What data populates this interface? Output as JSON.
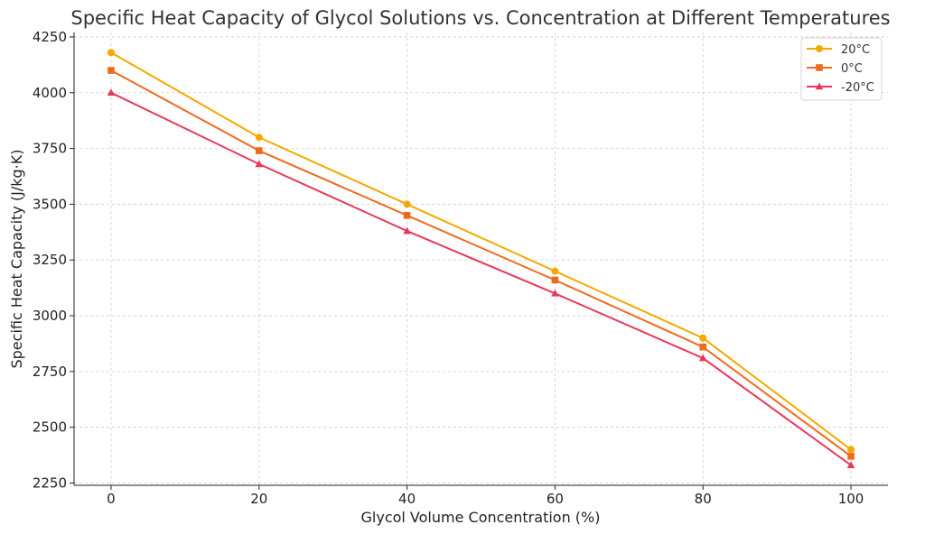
{
  "chart_data": {
    "type": "line",
    "title": "Specific Heat Capacity of Glycol Solutions vs. Concentration at Different Temperatures",
    "xlabel": "Glycol Volume Concentration (%)",
    "ylabel": "Specific Heat Capacity (J/kg·K)",
    "x": [
      0,
      20,
      40,
      60,
      80,
      100
    ],
    "xticks": [
      0,
      20,
      40,
      60,
      80,
      100
    ],
    "yticks": [
      2250,
      2500,
      2750,
      3000,
      3250,
      3500,
      3750,
      4000,
      4250
    ],
    "xlim": [
      -5,
      105
    ],
    "ylim": [
      2240,
      4270
    ],
    "grid": true,
    "legend_position": "top-right",
    "series": [
      {
        "name": "20°C",
        "color": "#f5a800",
        "marker": "circle",
        "values": [
          4180,
          3800,
          3500,
          3200,
          2900,
          2400
        ]
      },
      {
        "name": "0°C",
        "color": "#ee6a1e",
        "marker": "square",
        "values": [
          4100,
          3740,
          3450,
          3160,
          2860,
          2370
        ]
      },
      {
        "name": "-20°C",
        "color": "#e8385a",
        "marker": "triangle",
        "values": [
          4000,
          3680,
          3380,
          3100,
          2810,
          2330
        ]
      }
    ]
  }
}
